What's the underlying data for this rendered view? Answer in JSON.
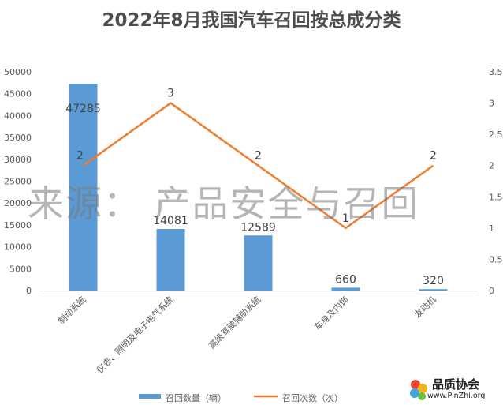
{
  "chart_data": {
    "type": "bar",
    "title": "2022年8月我国汽车召回按总成分类",
    "categories": [
      "制动系统",
      "仪表、照明及电子电气系统",
      "高级驾驶辅助系统",
      "车身及内饰",
      "发动机"
    ],
    "series": [
      {
        "name": "召回数量（辆）",
        "type": "bar",
        "axis": "left",
        "values": [
          47285,
          14081,
          12589,
          660,
          320
        ]
      },
      {
        "name": "召回次数（次）",
        "type": "line",
        "axis": "right",
        "values": [
          2,
          3,
          2,
          1,
          2
        ]
      }
    ],
    "y_left": {
      "ylim": [
        0,
        50000
      ],
      "ticks": [
        0,
        5000,
        10000,
        15000,
        20000,
        25000,
        30000,
        35000,
        40000,
        45000,
        50000
      ]
    },
    "y_right": {
      "ylim": [
        0,
        3.5
      ],
      "ticks": [
        "0",
        "0.5",
        "1",
        "1.5",
        "2",
        "2.5",
        "3",
        "3.5"
      ]
    },
    "grid": false,
    "legend_position": "bottom",
    "colors": {
      "bar": "#5b9bd5",
      "line": "#ed7d31"
    }
  },
  "watermark": "来源：  产品安全与召回",
  "logo": {
    "name": "品质协会",
    "url": "www.PinZhi.org"
  }
}
